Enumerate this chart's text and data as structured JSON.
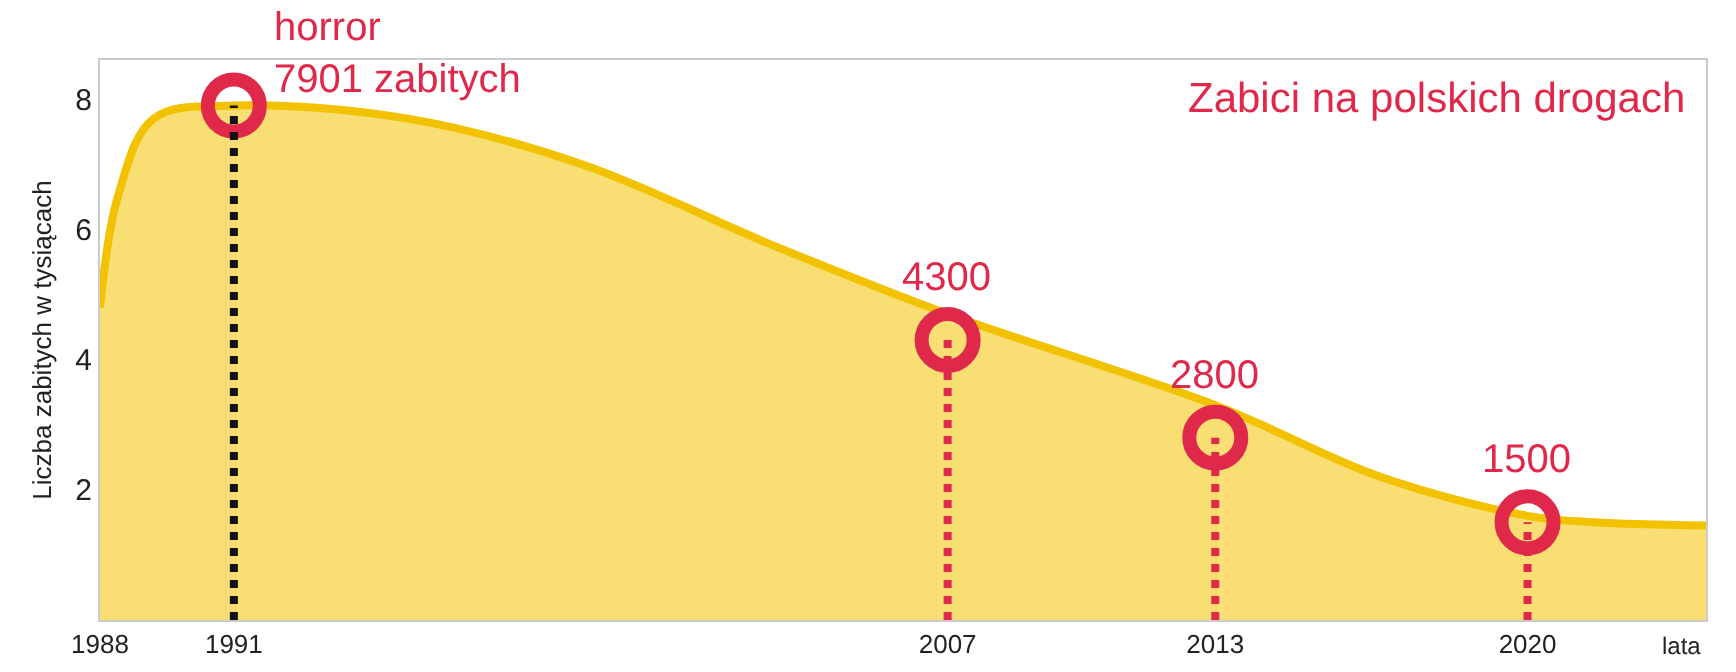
{
  "chart_data": {
    "type": "area",
    "title": "Zabici na polskich drogach",
    "ylabel": "Liczba zabitych w tysiącach",
    "xlabel": "lata",
    "xlim": [
      1988,
      2024
    ],
    "xticks": [
      1988,
      1991,
      2007,
      2013,
      2020
    ],
    "ylim": [
      0,
      8.6
    ],
    "yticks": [
      2,
      4,
      6,
      8
    ],
    "grid": false,
    "series": [
      {
        "color": "#f2c200",
        "x": [
          1988,
          1988.4,
          1989.2,
          1991,
          1994.9,
          1998.8,
          2003.1,
          2007,
          2013,
          2016.7,
          2020,
          2021.5,
          2024
        ],
        "values": [
          4.8,
          6.5,
          7.7,
          7.9,
          7.7,
          7.0,
          5.75,
          4.7,
          3.3,
          2.2,
          1.6,
          1.5,
          1.45
        ]
      },
      {
        "type": "scatter",
        "color": "#e0284a",
        "marker": "circle",
        "x": [
          1991,
          2007,
          2013,
          2020
        ],
        "values": [
          7.9,
          4.3,
          2.8,
          1.5
        ]
      }
    ],
    "annotations": [
      {
        "text": "horror\n7901 zabitych",
        "x": 1991,
        "y": 7.9
      },
      {
        "text": "4300",
        "x": 2007,
        "y": 4.3
      },
      {
        "text": "2800",
        "x": 2013,
        "y": 2.8
      },
      {
        "text": "1500",
        "x": 2020,
        "y": 1.5
      }
    ],
    "ref_lines": [
      {
        "axis": "x",
        "value": 1991,
        "color": "#111111",
        "line_style": "dotted"
      },
      {
        "axis": "x",
        "value": 2007,
        "color": "#e0284a",
        "line_style": "dotted"
      },
      {
        "axis": "x",
        "value": 2013,
        "color": "#e0284a",
        "line_style": "dotted"
      },
      {
        "axis": "x",
        "value": 2020,
        "color": "#e0284a",
        "line_style": "dotted"
      }
    ]
  }
}
